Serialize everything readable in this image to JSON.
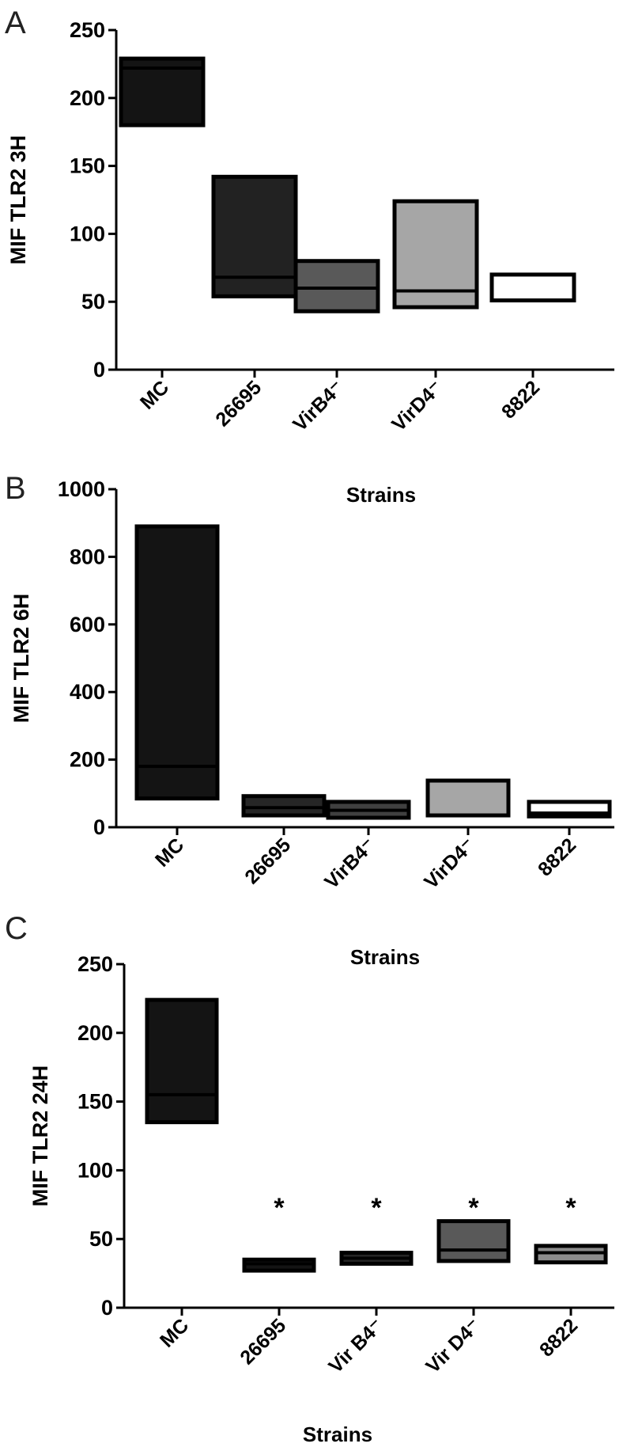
{
  "panels": [
    {
      "letter": "A"
    },
    {
      "letter": "B"
    },
    {
      "letter": "C"
    }
  ],
  "chart_data": [
    {
      "type": "box",
      "title": "",
      "ylabel": "MIF TLR2  3H",
      "xlabel": "",
      "ylim": [
        0,
        250
      ],
      "yticks": [
        0,
        50,
        100,
        150,
        200,
        250
      ],
      "categories": [
        "MC",
        "26695",
        "VirB4⁻",
        "VirD4⁻",
        "8822"
      ],
      "boxes": [
        {
          "low": 180,
          "high": 229,
          "median": 222,
          "color": "#141414"
        },
        {
          "low": 54,
          "high": 142,
          "median": 68,
          "color": "#222222"
        },
        {
          "low": 43,
          "high": 80,
          "median": 60,
          "color": "#595959"
        },
        {
          "low": 46,
          "high": 124,
          "median": 58,
          "color": "#a6a6a6"
        },
        {
          "low": 51,
          "high": 70,
          "median": 70,
          "color": "#ffffff"
        }
      ],
      "annotations": [],
      "grid": false
    },
    {
      "type": "box",
      "title": "Strains",
      "ylabel": "MIF TLR2  6H",
      "xlabel": "",
      "ylim": [
        0,
        1000
      ],
      "yticks": [
        0,
        200,
        400,
        600,
        800,
        1000
      ],
      "categories": [
        "MC",
        "26695",
        "VirB4⁻",
        "VirD4⁻",
        "8822"
      ],
      "boxes": [
        {
          "low": 85,
          "high": 890,
          "median": 180,
          "color": "#141414"
        },
        {
          "low": 35,
          "high": 92,
          "median": 58,
          "color": "#262626"
        },
        {
          "low": 28,
          "high": 75,
          "median": 50,
          "color": "#404040"
        },
        {
          "low": 35,
          "high": 138,
          "median": 138,
          "color": "#a6a6a6"
        },
        {
          "low": 32,
          "high": 75,
          "median": 42,
          "color": "#ffffff"
        }
      ],
      "annotations": [],
      "grid": false
    },
    {
      "type": "box",
      "title": "Strains",
      "ylabel": "MIF TLR2  24H",
      "xlabel": "Strains",
      "ylim": [
        0,
        250
      ],
      "yticks": [
        0,
        50,
        100,
        150,
        200,
        250
      ],
      "categories": [
        "MC",
        "26695",
        "Vir B4⁻",
        "Vir D4⁻",
        "8822"
      ],
      "boxes": [
        {
          "low": 135,
          "high": 224,
          "median": 155,
          "color": "#141414"
        },
        {
          "low": 27,
          "high": 35,
          "median": 32,
          "color": "#141414"
        },
        {
          "low": 32,
          "high": 40,
          "median": 36,
          "color": "#262626"
        },
        {
          "low": 34,
          "high": 63,
          "median": 42,
          "color": "#595959"
        },
        {
          "low": 33,
          "high": 45,
          "median": 40,
          "color": "#8c8c8c"
        }
      ],
      "annotations": [
        "",
        "*",
        "*",
        "*",
        "*"
      ],
      "grid": false
    }
  ]
}
